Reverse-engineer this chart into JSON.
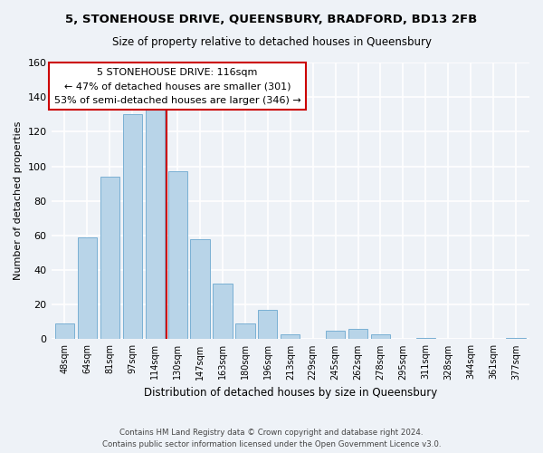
{
  "title1": "5, STONEHOUSE DRIVE, QUEENSBURY, BRADFORD, BD13 2FB",
  "title2": "Size of property relative to detached houses in Queensbury",
  "xlabel": "Distribution of detached houses by size in Queensbury",
  "ylabel": "Number of detached properties",
  "bar_labels": [
    "48sqm",
    "64sqm",
    "81sqm",
    "97sqm",
    "114sqm",
    "130sqm",
    "147sqm",
    "163sqm",
    "180sqm",
    "196sqm",
    "213sqm",
    "229sqm",
    "245sqm",
    "262sqm",
    "278sqm",
    "295sqm",
    "311sqm",
    "328sqm",
    "344sqm",
    "361sqm",
    "377sqm"
  ],
  "bar_values": [
    9,
    59,
    94,
    130,
    133,
    97,
    58,
    32,
    9,
    17,
    3,
    0,
    5,
    6,
    3,
    0,
    1,
    0,
    0,
    0,
    1
  ],
  "bar_color": "#b8d4e8",
  "bar_edge_color": "#7ab0d4",
  "vline_x": 4.5,
  "vline_color": "#cc0000",
  "annotation_title": "5 STONEHOUSE DRIVE: 116sqm",
  "annotation_line1": "← 47% of detached houses are smaller (301)",
  "annotation_line2": "53% of semi-detached houses are larger (346) →",
  "annotation_box_color": "#ffffff",
  "annotation_box_edge": "#cc0000",
  "ylim": [
    0,
    160
  ],
  "yticks": [
    0,
    20,
    40,
    60,
    80,
    100,
    120,
    140,
    160
  ],
  "footer1": "Contains HM Land Registry data © Crown copyright and database right 2024.",
  "footer2": "Contains public sector information licensed under the Open Government Licence v3.0.",
  "bg_color": "#eef2f7"
}
